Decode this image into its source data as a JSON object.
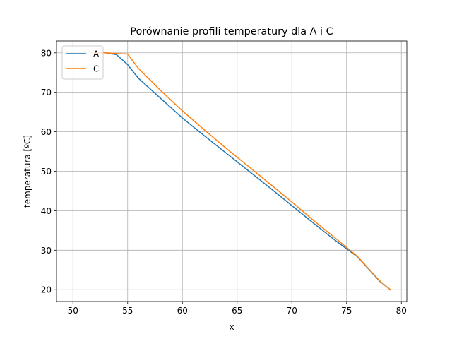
{
  "chart_data": {
    "type": "line",
    "title": "Porównanie profili temperatury dla A i C",
    "xlabel": "x",
    "ylabel": "temperatura [ºC]",
    "xlim": [
      48.5,
      80.5
    ],
    "ylim": [
      17,
      83
    ],
    "xticks": [
      50,
      55,
      60,
      65,
      70,
      75,
      80
    ],
    "yticks": [
      20,
      30,
      40,
      50,
      60,
      70,
      80
    ],
    "grid": true,
    "legend_position": "top-left",
    "series": [
      {
        "name": "A",
        "color": "#1f77b4",
        "x": [
          52,
          53,
          54,
          55,
          56,
          58,
          60,
          62,
          64,
          66,
          68,
          70,
          72,
          74,
          76,
          78,
          79
        ],
        "y": [
          80,
          80,
          79.5,
          77,
          73.5,
          68.5,
          63.5,
          59,
          54.6,
          50.2,
          45.8,
          41.3,
          36.8,
          32.4,
          28.3,
          22.2,
          20
        ]
      },
      {
        "name": "C",
        "color": "#ff7f0e",
        "x": [
          52,
          53,
          54,
          55,
          56,
          58,
          60,
          62,
          64,
          66,
          68,
          70,
          72,
          74,
          76,
          78,
          79
        ],
        "y": [
          80,
          80,
          79.8,
          79.7,
          76,
          70.5,
          65.3,
          60.5,
          55.8,
          51.3,
          46.8,
          42.2,
          37.5,
          33,
          28.4,
          22.3,
          20
        ]
      }
    ]
  }
}
